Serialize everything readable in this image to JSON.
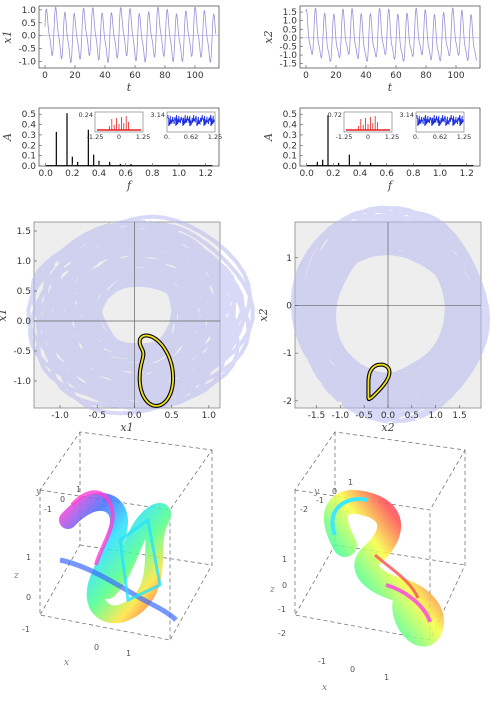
{
  "chart_data": [
    {
      "id": "ts1",
      "type": "line",
      "xlabel": "t",
      "ylabel": "x1",
      "xlim": [
        -4,
        116
      ],
      "ylim": [
        -1.25,
        1.15
      ],
      "xticks": [
        "0",
        "20",
        "40",
        "60",
        "80",
        "100"
      ],
      "yticks": [
        "-1.0",
        "-0.5",
        "0.0",
        "0.5",
        "1.0"
      ],
      "period": 6.2,
      "amplitude": 1.15,
      "color": "#9a8fd6"
    },
    {
      "id": "ts2",
      "type": "line",
      "xlabel": "t",
      "ylabel": "x2",
      "xlim": [
        -4,
        116
      ],
      "ylim": [
        -1.75,
        1.85
      ],
      "xticks": [
        "0",
        "20",
        "40",
        "60",
        "80",
        "100"
      ],
      "yticks": [
        "-1.5",
        "-1.0",
        "-0.5",
        "0.0",
        "0.5",
        "1.0",
        "1.5"
      ],
      "period": 6.1,
      "amplitude": 1.7,
      "color": "#9a8fd6"
    },
    {
      "id": "sp1",
      "type": "bar",
      "xlabel": "f",
      "ylabel": "A",
      "xlim": [
        -0.05,
        1.3
      ],
      "ylim": [
        0,
        0.56
      ],
      "xticks": [
        "0.0",
        "0.2",
        "0.4",
        "0.6",
        "0.8",
        "1.0",
        "1.2"
      ],
      "yticks": [
        "0.0",
        "0.1",
        "0.2",
        "0.3",
        "0.4",
        "0.5"
      ],
      "peaks": [
        {
          "f": 0.08,
          "a": 0.33
        },
        {
          "f": 0.16,
          "a": 0.51
        },
        {
          "f": 0.2,
          "a": 0.09
        },
        {
          "f": 0.24,
          "a": 0.04
        },
        {
          "f": 0.32,
          "a": 0.35
        },
        {
          "f": 0.36,
          "a": 0.11
        },
        {
          "f": 0.4,
          "a": 0.05
        },
        {
          "f": 0.48,
          "a": 0.04
        },
        {
          "f": 0.56,
          "a": 0.02
        },
        {
          "f": 0.64,
          "a": 0.02
        }
      ],
      "inset_amp_ymax": "0.24",
      "inset_amp_x": [
        "-1.25",
        "0",
        "1.25"
      ],
      "inset_phase_ymax": "3.14",
      "inset_phase_x": [
        "0.",
        "0.62",
        "1.25"
      ]
    },
    {
      "id": "sp2",
      "type": "bar",
      "xlabel": "f",
      "ylabel": "A",
      "xlim": [
        -0.05,
        1.3
      ],
      "ylim": [
        0,
        0.56
      ],
      "xticks": [
        "0.0",
        "0.2",
        "0.4",
        "0.6",
        "0.8",
        "1.0",
        "1.2"
      ],
      "yticks": [
        "0.0",
        "0.1",
        "0.2",
        "0.3",
        "0.4",
        "0.5"
      ],
      "peaks": [
        {
          "f": 0.08,
          "a": 0.04
        },
        {
          "f": 0.12,
          "a": 0.06
        },
        {
          "f": 0.16,
          "a": 0.49
        },
        {
          "f": 0.24,
          "a": 0.03
        },
        {
          "f": 0.32,
          "a": 0.11
        },
        {
          "f": 0.4,
          "a": 0.04
        },
        {
          "f": 0.48,
          "a": 0.03
        }
      ],
      "inset_amp_ymax": "0.72",
      "inset_amp_x": [
        "-1.25",
        "0",
        "1.25"
      ],
      "inset_phase_ymax": "3.14",
      "inset_phase_x": [
        "0.",
        "0.62",
        "1.25"
      ]
    },
    {
      "id": "ph1",
      "type": "line",
      "xlabel": "x1",
      "ylabel": "x1",
      "xlim": [
        -1.35,
        1.15
      ],
      "ylim": [
        -1.45,
        1.65
      ],
      "xticks": [
        "-1.0",
        "-0.5",
        "0.0",
        "0.5",
        "1.0"
      ],
      "yticks": [
        "-1.0",
        "-0.5",
        "0.0",
        "0.5",
        "1.0",
        "1.5"
      ],
      "cloud_color": "#b7b9ee",
      "orbit_color": "#f2e01c"
    },
    {
      "id": "ph2",
      "type": "line",
      "xlabel": "x2",
      "ylabel": "x2",
      "xlim": [
        -1.95,
        1.95
      ],
      "ylim": [
        -2.15,
        1.75
      ],
      "xticks": [
        "-1.5",
        "-1.0",
        "-0.5",
        "0.0",
        "0.5",
        "1.0",
        "1.5"
      ],
      "yticks": [
        "-2",
        "-1",
        "0",
        "1"
      ],
      "cloud_color": "#b7b9ee",
      "orbit_color": "#f2e01c"
    },
    {
      "id": "box1",
      "type": "line",
      "axes3d": {
        "x": "x",
        "y": "y",
        "z": "z"
      },
      "tick_x": [
        "0",
        "1"
      ],
      "tick_y": [
        "-1",
        "0",
        "1"
      ],
      "tick_z": [
        "1",
        "0",
        "-1"
      ]
    },
    {
      "id": "box2",
      "type": "line",
      "axes3d": {
        "x": "x",
        "y": "y",
        "z": "z"
      },
      "tick_x": [
        "-1",
        "0",
        "1"
      ],
      "tick_y": [
        "-2",
        "-1",
        "0",
        "1"
      ],
      "tick_z": [
        "1",
        "0",
        "-1",
        "-2"
      ]
    }
  ]
}
